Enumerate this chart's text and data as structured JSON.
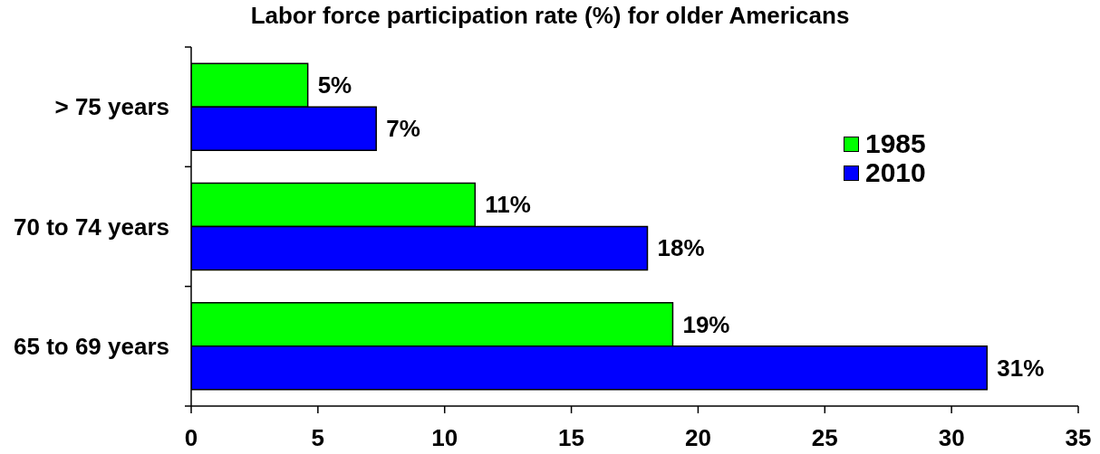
{
  "chart_data": {
    "type": "bar",
    "orientation": "horizontal",
    "title": "Labor force participation rate (%) for older Americans",
    "categories": [
      "> 75 years",
      "70 to 74 years",
      "65 to 69 years"
    ],
    "series": [
      {
        "name": "1985",
        "color": "#00ff00",
        "values": [
          4.6,
          11.2,
          19.0
        ],
        "value_labels": [
          "5%",
          "11%",
          "19%"
        ]
      },
      {
        "name": "2010",
        "color": "#0000ff",
        "values": [
          7.3,
          18.0,
          31.4
        ],
        "value_labels": [
          "7%",
          "18%",
          "31%"
        ]
      }
    ],
    "xlim": [
      0,
      35
    ],
    "xticks": [
      0,
      5,
      10,
      15,
      20,
      25,
      30,
      35
    ],
    "grid": false,
    "legend": "right"
  }
}
